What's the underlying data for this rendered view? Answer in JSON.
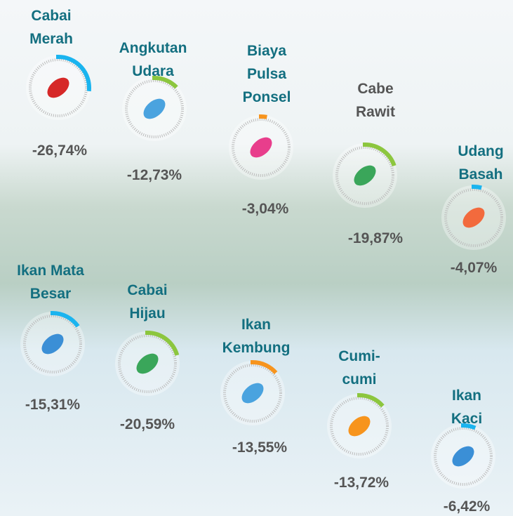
{
  "chart_data": {
    "type": "radial-gauge",
    "categories": [
      "Cabai\nMerah",
      "Angkutan\nUdara",
      "Biaya\nPulsa\nPonsel",
      "Cabe\nRawit",
      "Udang\nBasah",
      "Ikan Mata\nBesar",
      "Cabai\nHijau",
      "Ikan\nKembung",
      "Cumi-\ncumi",
      "Ikan Kaci"
    ],
    "values": [
      -26.74,
      -12.73,
      -3.04,
      -19.87,
      -4.07,
      -15.31,
      -20.59,
      -13.55,
      -13.72,
      -6.42
    ],
    "value_labels": [
      "-26,74%",
      "-12,73%",
      "-3,04%",
      "-19,87%",
      "-4,07%",
      "-15,31%",
      "-20,59%",
      "-13,55%",
      "-13,72%",
      "-6,42%"
    ],
    "colors": [
      "#1ab4ef",
      "#8cc63e",
      "#f7941d",
      "#8cc63e",
      "#1ab4ef",
      "#1ab4ef",
      "#8cc63e",
      "#f7941d",
      "#8cc63e",
      "#1ab4ef"
    ]
  }
}
